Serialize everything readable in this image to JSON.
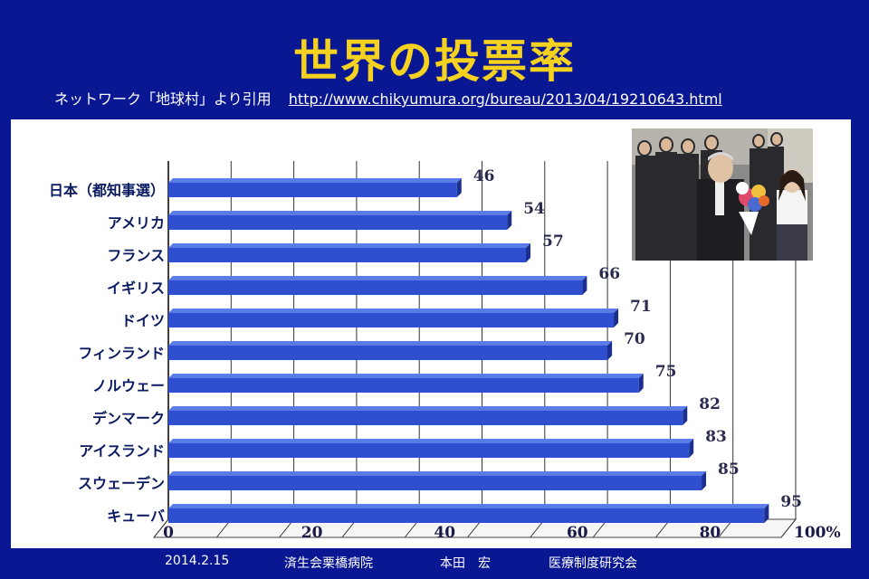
{
  "header": {
    "title": "世界の投票率",
    "source_text": "ネットワーク「地球村」より引用",
    "source_url": "http://www.chikyumura.org/bureau/2013/04/19210643.html"
  },
  "footer": {
    "date": "2014.2.15",
    "hospital": "済生会栗橋病院",
    "author": "本田　宏",
    "institute": "医療制度研究会"
  },
  "photo": {
    "description_icon": "photo-image"
  },
  "colors": {
    "background": "#0a1793",
    "title": "#f4d21f",
    "bar": "#2f4fd0",
    "bar_light": "#5a7ce8",
    "bar_dark": "#1b2f8f"
  },
  "chart_data": {
    "type": "bar",
    "orientation": "horizontal",
    "categories": [
      "日本（都知事選）",
      "アメリカ",
      "フランス",
      "イギリス",
      "ドイツ",
      "フィンランド",
      "ノルウェー",
      "デンマーク",
      "アイスランド",
      "スウェーデン",
      "キューバ"
    ],
    "values": [
      46,
      54,
      57,
      66,
      71,
      70,
      75,
      82,
      83,
      85,
      95
    ],
    "xticks": [
      "0",
      "20",
      "40",
      "60",
      "80",
      "100%"
    ],
    "xlim": [
      0,
      100
    ],
    "grid": true
  }
}
